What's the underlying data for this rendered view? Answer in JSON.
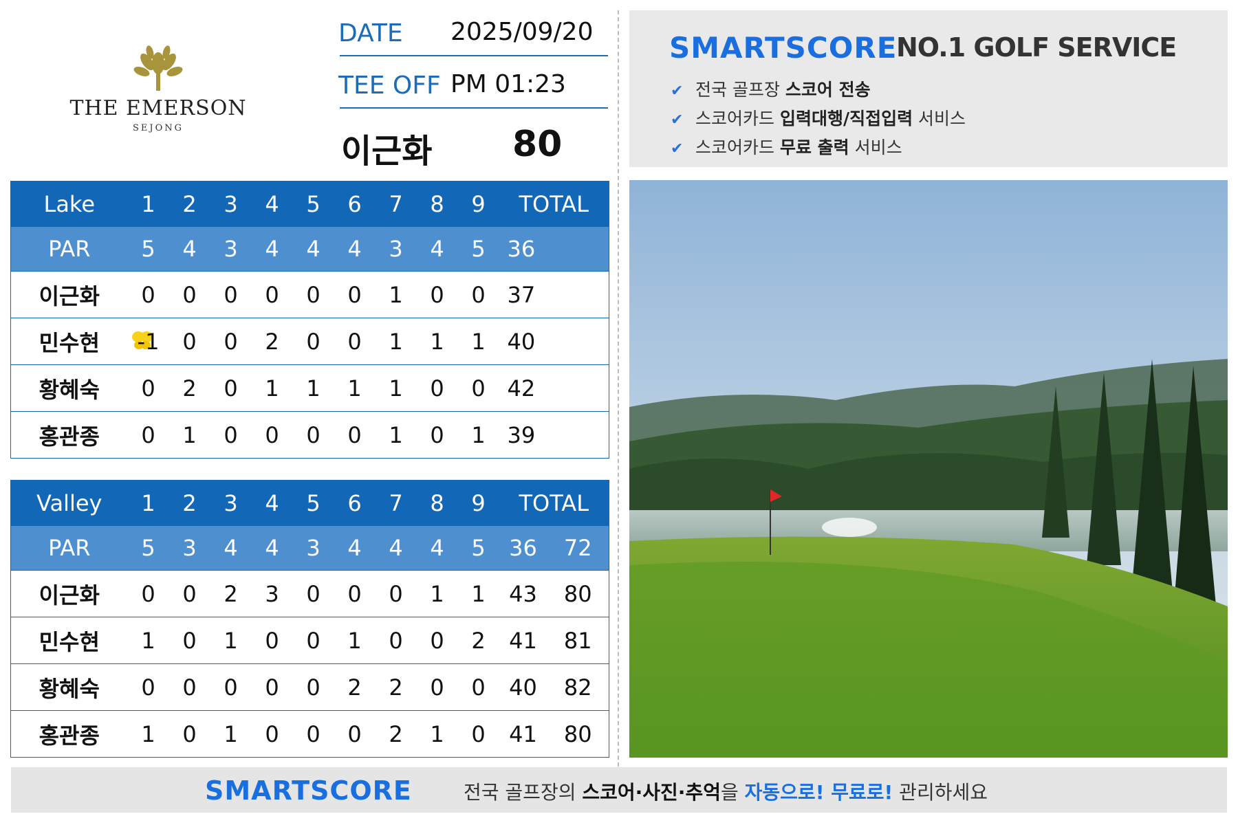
{
  "course": {
    "name": "THE EMERSON",
    "sub": "SEJONG"
  },
  "info": {
    "date_label": "DATE",
    "date_value": "2025/09/20",
    "tee_label": "TEE OFF",
    "tee_value": "PM 01:23"
  },
  "main_player": {
    "name": "이근화",
    "score": "80"
  },
  "lake": {
    "header": [
      "Lake",
      "1",
      "2",
      "3",
      "4",
      "5",
      "6",
      "7",
      "8",
      "9",
      "TOTAL"
    ],
    "par": [
      "PAR",
      "5",
      "4",
      "3",
      "4",
      "4",
      "4",
      "3",
      "4",
      "5",
      "36"
    ],
    "rows": [
      [
        "이근화",
        "0",
        "0",
        "0",
        "0",
        "0",
        "0",
        "1",
        "0",
        "0",
        "37"
      ],
      [
        "민수현",
        "-1",
        "0",
        "0",
        "2",
        "0",
        "0",
        "1",
        "1",
        "1",
        "40"
      ],
      [
        "황혜숙",
        "0",
        "2",
        "0",
        "1",
        "1",
        "1",
        "1",
        "0",
        "0",
        "42"
      ],
      [
        "홍관종",
        "0",
        "1",
        "0",
        "0",
        "0",
        "0",
        "1",
        "0",
        "1",
        "39"
      ]
    ]
  },
  "valley": {
    "header": [
      "Valley",
      "1",
      "2",
      "3",
      "4",
      "5",
      "6",
      "7",
      "8",
      "9",
      "TOTAL"
    ],
    "par": [
      "PAR",
      "5",
      "3",
      "4",
      "4",
      "3",
      "4",
      "4",
      "4",
      "5",
      "36",
      "72"
    ],
    "rows": [
      [
        "이근화",
        "0",
        "0",
        "2",
        "3",
        "0",
        "0",
        "0",
        "1",
        "1",
        "43",
        "80"
      ],
      [
        "민수현",
        "1",
        "0",
        "1",
        "0",
        "0",
        "1",
        "0",
        "0",
        "2",
        "41",
        "81"
      ],
      [
        "황혜숙",
        "0",
        "0",
        "0",
        "0",
        "0",
        "2",
        "2",
        "0",
        "0",
        "40",
        "82"
      ],
      [
        "홍관종",
        "1",
        "0",
        "1",
        "0",
        "0",
        "0",
        "2",
        "1",
        "0",
        "41",
        "80"
      ]
    ]
  },
  "promo": {
    "brand": "SMARTSCORE",
    "tagline": "NO.1 GOLF SERVICE",
    "features": [
      {
        "pre": "전국 골프장 ",
        "bold": "스코어 전송",
        "post": ""
      },
      {
        "pre": "스코어카드 ",
        "bold": "입력대행/직접입력",
        "post": " 서비스"
      },
      {
        "pre": "스코어카드 ",
        "bold": "무료 출력",
        "post": " 서비스"
      }
    ]
  },
  "footer": {
    "brand": "SMARTSCORE",
    "pre": "전국 골프장의 ",
    "bold": "스코어·사진·추억",
    "mid": "을 ",
    "hl1": "자동으로!",
    "hl2": " 무료로!",
    "post": " 관리하세요"
  },
  "icons": {
    "check": "check-icon",
    "logo": "tree-logo-icon",
    "birdie": "butterfly-icon",
    "flag": "flag-icon"
  },
  "colors": {
    "accent": "#1267b7",
    "par_row": "#4e8fd0",
    "brand": "#1a6fe0",
    "promo_bg": "#e9e9ea"
  }
}
